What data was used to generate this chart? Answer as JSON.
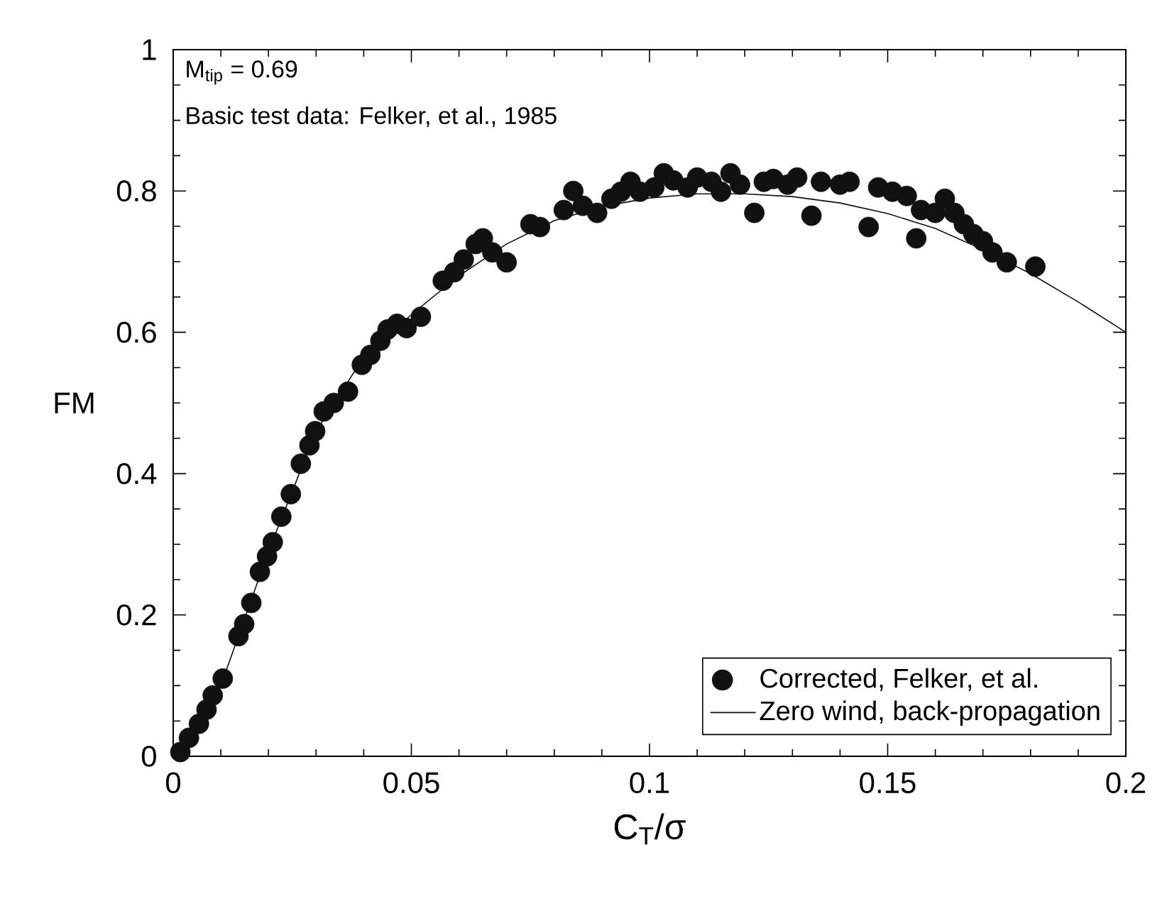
{
  "chart_data": {
    "type": "scatter",
    "xlabel": "C$_{T}$/σ",
    "ylabel": "FM",
    "annotations": [
      "M$_{tip}$ = 0.69",
      "Basic test data: Felker, et al., 1985"
    ],
    "xlim": [
      0,
      0.2
    ],
    "ylim": [
      0,
      1
    ],
    "xticks": [
      0,
      0.05,
      0.1,
      0.15,
      0.2
    ],
    "yticks": [
      0,
      0.2,
      0.4,
      0.6,
      0.8,
      1
    ],
    "grid": false,
    "legend": "bottom right",
    "series": [
      {
        "name": "Corrected, Felker, et al.",
        "marker": "circle",
        "color": "#111111",
        "x": [
          0.0015,
          0.0033,
          0.0054,
          0.007,
          0.0083,
          0.0104,
          0.0137,
          0.0149,
          0.0164,
          0.0182,
          0.0197,
          0.0209,
          0.0227,
          0.0247,
          0.0268,
          0.0286,
          0.0298,
          0.0316,
          0.0337,
          0.0367,
          0.0396,
          0.0414,
          0.0435,
          0.045,
          0.047,
          0.049,
          0.052,
          0.0566,
          0.059,
          0.061,
          0.0635,
          0.065,
          0.067,
          0.07,
          0.075,
          0.077,
          0.082,
          0.084,
          0.086,
          0.089,
          0.092,
          0.094,
          0.096,
          0.098,
          0.101,
          0.103,
          0.105,
          0.108,
          0.11,
          0.113,
          0.115,
          0.117,
          0.119,
          0.122,
          0.124,
          0.126,
          0.129,
          0.131,
          0.134,
          0.136,
          0.14,
          0.142,
          0.146,
          0.148,
          0.151,
          0.154,
          0.156,
          0.157,
          0.16,
          0.162,
          0.164,
          0.166,
          0.168,
          0.17,
          0.172,
          0.175,
          0.181
        ],
        "values": [
          0.006,
          0.026,
          0.046,
          0.066,
          0.086,
          0.11,
          0.17,
          0.187,
          0.217,
          0.261,
          0.283,
          0.303,
          0.339,
          0.371,
          0.414,
          0.44,
          0.46,
          0.488,
          0.5,
          0.516,
          0.554,
          0.568,
          0.588,
          0.604,
          0.612,
          0.606,
          0.622,
          0.673,
          0.685,
          0.703,
          0.725,
          0.733,
          0.713,
          0.699,
          0.753,
          0.749,
          0.773,
          0.8,
          0.779,
          0.769,
          0.789,
          0.799,
          0.813,
          0.799,
          0.805,
          0.825,
          0.815,
          0.805,
          0.819,
          0.813,
          0.799,
          0.825,
          0.809,
          0.769,
          0.813,
          0.817,
          0.809,
          0.819,
          0.765,
          0.813,
          0.809,
          0.813,
          0.749,
          0.805,
          0.799,
          0.793,
          0.733,
          0.773,
          0.769,
          0.789,
          0.769,
          0.753,
          0.739,
          0.729,
          0.713,
          0.699,
          0.693
        ]
      },
      {
        "name": "Zero wind, back-propagation",
        "type": "line",
        "marker": "none",
        "color": "#111111",
        "x": [
          0,
          0.01,
          0.02,
          0.03,
          0.04,
          0.05,
          0.06,
          0.07,
          0.08,
          0.09,
          0.1,
          0.11,
          0.12,
          0.13,
          0.14,
          0.15,
          0.16,
          0.17,
          0.18,
          0.19,
          0.2
        ],
        "values": [
          0,
          0.1,
          0.29,
          0.46,
          0.565,
          0.625,
          0.68,
          0.725,
          0.758,
          0.778,
          0.79,
          0.796,
          0.796,
          0.792,
          0.783,
          0.768,
          0.747,
          0.717,
          0.683,
          0.643,
          0.6
        ]
      }
    ]
  }
}
